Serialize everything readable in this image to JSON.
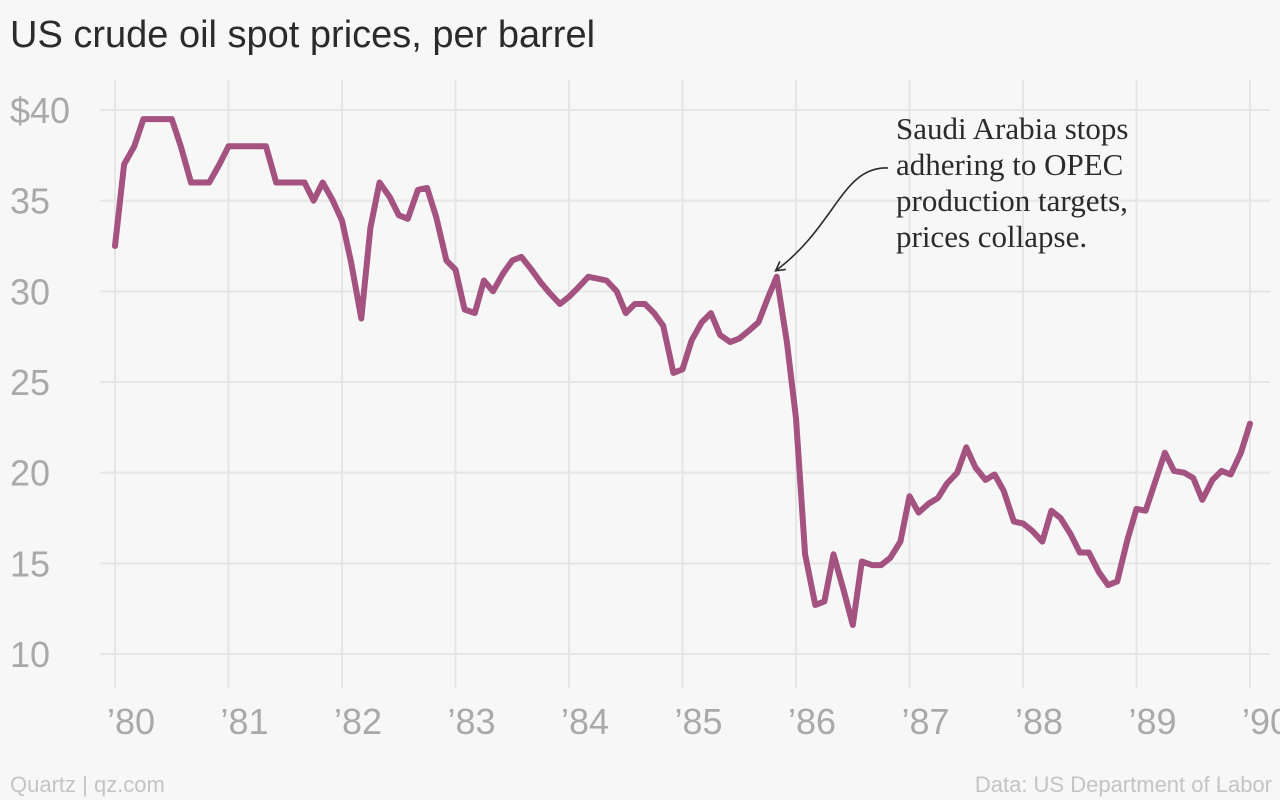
{
  "title": "US crude oil spot prices, per barrel",
  "footer": {
    "left": "Quartz | qz.com",
    "right": "Data: US Department of Labor"
  },
  "colors": {
    "line": "#a4527f",
    "grid": "#e6e6e6",
    "tick_label": "#a9a9a9",
    "annotation": "#2b2b2b",
    "background": "#f7f7f7"
  },
  "chart_data": {
    "type": "line",
    "title": "US crude oil spot prices, per barrel",
    "xlabel": "",
    "ylabel": "",
    "xlim": [
      1980.0,
      1990.0
    ],
    "ylim": [
      8,
      42
    ],
    "y_ticks": [
      10,
      15,
      20,
      25,
      30,
      35,
      40
    ],
    "y_tick_labels": [
      "10",
      "15",
      "20",
      "25",
      "30",
      "35",
      "$40"
    ],
    "x_ticks": [
      1980,
      1981,
      1982,
      1983,
      1984,
      1985,
      1986,
      1987,
      1988,
      1989,
      1990
    ],
    "x_tick_labels": [
      "’80",
      "’81",
      "’82",
      "’83",
      "’84",
      "’85",
      "’86",
      "’87",
      "’88",
      "’89",
      "’90"
    ],
    "grid": true,
    "series": [
      {
        "x": [
          1980.0,
          1980.08,
          1980.17,
          1980.25,
          1980.33,
          1980.42,
          1980.5,
          1980.58,
          1980.67,
          1980.75,
          1980.83,
          1980.92,
          1981.0,
          1981.08,
          1981.17,
          1981.25,
          1981.33,
          1981.42,
          1981.5,
          1981.58,
          1981.67,
          1981.75,
          1981.83,
          1981.92,
          1982.0,
          1982.08,
          1982.17,
          1982.25,
          1982.33,
          1982.42,
          1982.5,
          1982.58,
          1982.67,
          1982.75,
          1982.83,
          1982.92,
          1983.0,
          1983.08,
          1983.17,
          1983.25,
          1983.33,
          1983.42,
          1983.5,
          1983.58,
          1983.67,
          1983.75,
          1983.83,
          1983.92,
          1984.0,
          1984.08,
          1984.17,
          1984.25,
          1984.33,
          1984.42,
          1984.5,
          1984.58,
          1984.67,
          1984.75,
          1984.83,
          1984.92,
          1985.0,
          1985.08,
          1985.17,
          1985.25,
          1985.33,
          1985.42,
          1985.5,
          1985.58,
          1985.67,
          1985.75,
          1985.83,
          1985.92,
          1986.0,
          1986.08,
          1986.17,
          1986.25,
          1986.33,
          1986.42,
          1986.5,
          1986.58,
          1986.67,
          1986.75,
          1986.83,
          1986.92,
          1987.0,
          1987.08,
          1987.17,
          1987.25,
          1987.33,
          1987.42,
          1987.5,
          1987.58,
          1987.67,
          1987.75,
          1987.83,
          1987.92,
          1988.0,
          1988.08,
          1988.17,
          1988.25,
          1988.33,
          1988.42,
          1988.5,
          1988.58,
          1988.67,
          1988.75,
          1988.83,
          1988.92,
          1989.0,
          1989.08,
          1989.17,
          1989.25,
          1989.33,
          1989.42,
          1989.5,
          1989.58,
          1989.67,
          1989.75,
          1989.83,
          1989.92,
          1990.0
        ],
        "values": [
          32.5,
          37.0,
          38.0,
          39.5,
          39.5,
          39.5,
          39.5,
          38.0,
          36.0,
          36.0,
          36.0,
          37.0,
          38.0,
          38.0,
          38.0,
          38.0,
          38.0,
          36.0,
          36.0,
          36.0,
          36.0,
          35.0,
          36.0,
          35.0,
          33.9,
          31.6,
          28.5,
          33.5,
          36.0,
          35.2,
          34.2,
          34.0,
          35.6,
          35.7,
          34.1,
          31.7,
          31.2,
          29.0,
          28.8,
          30.6,
          30.0,
          31.0,
          31.7,
          31.9,
          31.2,
          30.5,
          29.9,
          29.3,
          29.7,
          30.2,
          30.8,
          30.7,
          30.6,
          30.0,
          28.8,
          29.3,
          29.3,
          28.8,
          28.1,
          25.5,
          25.7,
          27.3,
          28.3,
          28.8,
          27.6,
          27.2,
          27.4,
          27.8,
          28.3,
          29.6,
          30.8,
          27.2,
          23.0,
          15.5,
          12.7,
          12.9,
          15.5,
          13.5,
          11.6,
          15.1,
          14.9,
          14.9,
          15.3,
          16.2,
          18.7,
          17.8,
          18.3,
          18.6,
          19.4,
          20.0,
          21.4,
          20.3,
          19.6,
          19.9,
          19.0,
          17.3,
          17.2,
          16.8,
          16.2,
          17.9,
          17.5,
          16.6,
          15.6,
          15.6,
          14.5,
          13.8,
          14.0,
          16.3,
          18.0,
          17.9,
          19.6,
          21.1,
          20.1,
          20.0,
          19.7,
          18.5,
          19.6,
          20.1,
          19.9,
          21.1,
          22.7
        ]
      }
    ],
    "annotations": [
      {
        "text": [
          "Saudi Arabia stops",
          "adhering to OPEC",
          "production targets,",
          "prices collapse."
        ],
        "points_to": {
          "x": 1985.75,
          "y": 30.8
        }
      }
    ]
  }
}
